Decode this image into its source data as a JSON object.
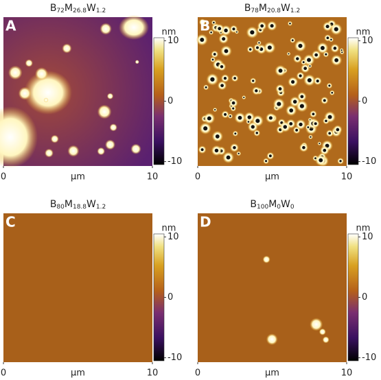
{
  "panels": [
    {
      "label": "A",
      "title": [
        {
          "base": "B",
          "sub": "72"
        },
        {
          "base": "M",
          "sub": "26.8"
        },
        {
          "base": "W",
          "sub": "1.2"
        }
      ],
      "colorbar": {
        "unit": "nm",
        "range": [
          -10.5,
          10.5
        ],
        "ticks": [
          10,
          0,
          -10
        ]
      },
      "x_axis": {
        "label": "μm",
        "xlim": [
          0,
          10
        ],
        "ticks": [
          0,
          10
        ]
      }
    },
    {
      "label": "B",
      "title": [
        {
          "base": "B",
          "sub": "78"
        },
        {
          "base": "M",
          "sub": "20.8"
        },
        {
          "base": "W",
          "sub": "1.2"
        }
      ],
      "colorbar": {
        "unit": "nm",
        "range": [
          -10.5,
          10.5
        ],
        "ticks": [
          10,
          0,
          -10
        ]
      },
      "x_axis": {
        "label": "μm",
        "xlim": [
          0,
          10
        ],
        "ticks": [
          0,
          10
        ]
      }
    },
    {
      "label": "C",
      "title": [
        {
          "base": "B",
          "sub": "80"
        },
        {
          "base": "M",
          "sub": "18.8"
        },
        {
          "base": "W",
          "sub": "1.2"
        }
      ],
      "colorbar": {
        "unit": "nm",
        "range": [
          -10.5,
          10.5
        ],
        "ticks": [
          10,
          0,
          -10
        ]
      },
      "x_axis": {
        "label": "μm",
        "xlim": [
          0,
          10
        ],
        "ticks": [
          0,
          10
        ]
      }
    },
    {
      "label": "D",
      "title": [
        {
          "base": "B",
          "sub": "100"
        },
        {
          "base": "M",
          "sub": "0"
        },
        {
          "base": "W",
          "sub": "0"
        }
      ],
      "colorbar": {
        "unit": "nm",
        "range": [
          -10.5,
          10.5
        ],
        "ticks": [
          10,
          0,
          -10
        ]
      },
      "x_axis": {
        "label": "μm",
        "xlim": [
          0,
          10
        ],
        "ticks": [
          0,
          10
        ]
      }
    }
  ]
}
